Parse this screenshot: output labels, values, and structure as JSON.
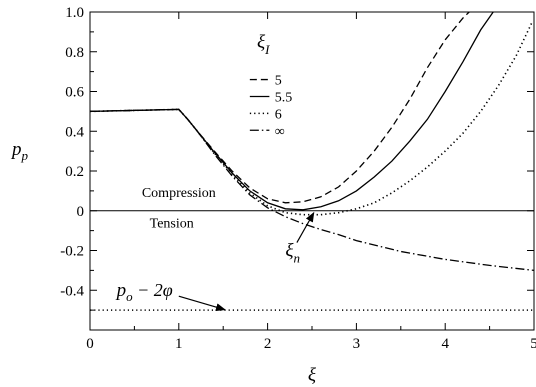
{
  "chart_data": {
    "type": "line",
    "xlabel": "ξ",
    "ylabel": "p",
    "ylabel_sub": "p",
    "xlim": [
      0,
      5
    ],
    "ylim": [
      -0.6,
      1.0
    ],
    "x_ticks": [
      "0",
      "1",
      "2",
      "3",
      "4",
      "5"
    ],
    "y_ticks": [
      "-0.4",
      "-0.2",
      "0",
      "0.2",
      "0.4",
      "0.6",
      "0.8",
      "1.0"
    ],
    "grid": false,
    "legend": {
      "title": "ξ",
      "title_sub": "I",
      "position": "upper-middle",
      "entries": [
        "5",
        "5.5",
        "6",
        "∞"
      ]
    },
    "series": [
      {
        "name": "5",
        "style": "dashed",
        "x": [
          0,
          1,
          1.1,
          1.2,
          1.4,
          1.6,
          1.8,
          2.0,
          2.2,
          2.4,
          2.6,
          2.8,
          3.0,
          3.2,
          3.4,
          3.6,
          3.8,
          4.0,
          4.2,
          4.27
        ],
        "y": [
          0.5,
          0.51,
          0.46,
          0.405,
          0.3,
          0.2,
          0.115,
          0.06,
          0.04,
          0.045,
          0.07,
          0.12,
          0.2,
          0.3,
          0.42,
          0.56,
          0.72,
          0.86,
          0.97,
          1.0
        ]
      },
      {
        "name": "5.5",
        "style": "solid",
        "x": [
          0,
          1,
          1.1,
          1.2,
          1.4,
          1.6,
          1.8,
          2.0,
          2.2,
          2.4,
          2.6,
          2.8,
          3.0,
          3.2,
          3.4,
          3.6,
          3.8,
          4.0,
          4.2,
          4.4,
          4.54
        ],
        "y": [
          0.5,
          0.51,
          0.46,
          0.405,
          0.295,
          0.19,
          0.1,
          0.04,
          0.01,
          0.005,
          0.02,
          0.05,
          0.1,
          0.17,
          0.25,
          0.35,
          0.46,
          0.6,
          0.75,
          0.91,
          1.0
        ]
      },
      {
        "name": "6",
        "style": "dotted",
        "x": [
          0,
          1,
          1.1,
          1.2,
          1.4,
          1.6,
          1.8,
          2.0,
          2.2,
          2.4,
          2.6,
          2.8,
          3.0,
          3.2,
          3.4,
          3.6,
          3.8,
          4.0,
          4.2,
          4.4,
          4.6,
          4.8,
          4.98
        ],
        "y": [
          0.5,
          0.51,
          0.46,
          0.405,
          0.29,
          0.185,
          0.09,
          0.025,
          -0.01,
          -0.02,
          -0.02,
          -0.01,
          0.01,
          0.04,
          0.09,
          0.15,
          0.22,
          0.3,
          0.39,
          0.5,
          0.63,
          0.78,
          0.95
        ]
      },
      {
        "name": "∞",
        "style": "dashdot",
        "x": [
          0,
          1,
          1.1,
          1.2,
          1.4,
          1.6,
          1.8,
          2.0,
          2.2,
          2.4,
          2.6,
          2.8,
          3.0,
          3.5,
          4.0,
          4.5,
          5.0
        ],
        "y": [
          0.5,
          0.51,
          0.46,
          0.405,
          0.285,
          0.175,
          0.08,
          0.015,
          -0.03,
          -0.065,
          -0.095,
          -0.12,
          -0.15,
          -0.205,
          -0.245,
          -0.275,
          -0.3
        ]
      }
    ],
    "reference_lines": [
      {
        "y": 0,
        "style": "solid"
      },
      {
        "y": -0.5,
        "style": "dotted"
      }
    ],
    "annotations": {
      "compression": "Compression",
      "tension": "Tension",
      "xi_n_base": "ξ",
      "xi_n_sub": "n",
      "po_base": "p",
      "po_sub": "o",
      "po_rest": " − 2φ"
    },
    "arrows": [
      {
        "label": "ξn",
        "from": [
          2.33,
          -0.16
        ],
        "to": [
          2.52,
          -0.01
        ]
      },
      {
        "label": "po−2φ",
        "from": [
          1.0,
          -0.43
        ],
        "to": [
          1.52,
          -0.498
        ]
      }
    ]
  }
}
